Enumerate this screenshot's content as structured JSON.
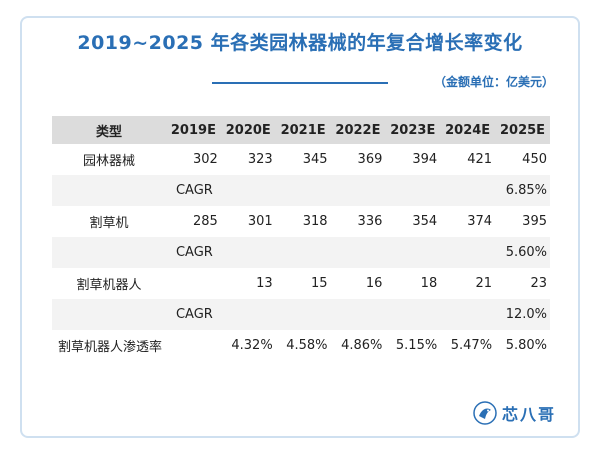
{
  "chart_data": {
    "type": "table",
    "title": "2019~2025 年各类园林器械的年复合增长率变化",
    "unit_note": "（金额单位：亿美元）",
    "columns": [
      "类型",
      "2019E",
      "2020E",
      "2021E",
      "2022E",
      "2023E",
      "2024E",
      "2025E"
    ],
    "rows": [
      {
        "label": "园林器械",
        "values": [
          "302",
          "323",
          "345",
          "369",
          "394",
          "421",
          "450"
        ]
      },
      {
        "label": "CAGR",
        "values": [
          "",
          "",
          "",
          "",
          "",
          "",
          "6.85%"
        ]
      },
      {
        "label": "割草机",
        "values": [
          "285",
          "301",
          "318",
          "336",
          "354",
          "374",
          "395"
        ]
      },
      {
        "label": "CAGR",
        "values": [
          "",
          "",
          "",
          "",
          "",
          "",
          "5.60%"
        ]
      },
      {
        "label": "割草机器人",
        "values": [
          "",
          "13",
          "15",
          "16",
          "18",
          "21",
          "23"
        ]
      },
      {
        "label": "CAGR",
        "values": [
          "",
          "",
          "",
          "",
          "",
          "",
          "12.0%"
        ]
      },
      {
        "label": "割草机器人渗透率",
        "values": [
          "",
          "4.32%",
          "4.58%",
          "4.86%",
          "5.15%",
          "5.47%",
          "5.80%"
        ]
      }
    ]
  },
  "brand": {
    "name": "芯八哥",
    "color": "#2a6fb5",
    "icon": "bird-logo-icon"
  }
}
